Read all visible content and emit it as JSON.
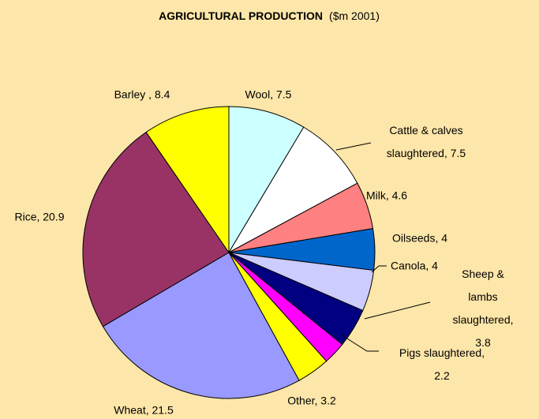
{
  "chart_data": {
    "type": "pie",
    "title": "AGRICULTURAL PRODUCTION",
    "subtitle": "($m 2001)",
    "values": [
      7.5,
      7.5,
      4.6,
      4,
      4,
      3.8,
      2.2,
      3.2,
      21.5,
      20.9,
      8.4
    ],
    "value_labels": [
      "Wool, 7.5",
      "Cattle & calves\nslaughtered, 7.5",
      "Milk, 4.6",
      "Oilseeds, 4",
      "Canola, 4",
      "Sheep & lambs\nslaughtered, 3.8",
      "Pigs slaughtered,\n2.2",
      "Other, 3.2",
      "Wheat, 21.5",
      "Rice, 20.9",
      "Barley , 8.4"
    ],
    "colors": [
      "#ccffff",
      "#ffffff",
      "#ff8080",
      "#0066cc",
      "#ccccff",
      "#000080",
      "#ff00ff",
      "#ffff00",
      "#9999ff",
      "#993366",
      "#ffff00"
    ]
  }
}
